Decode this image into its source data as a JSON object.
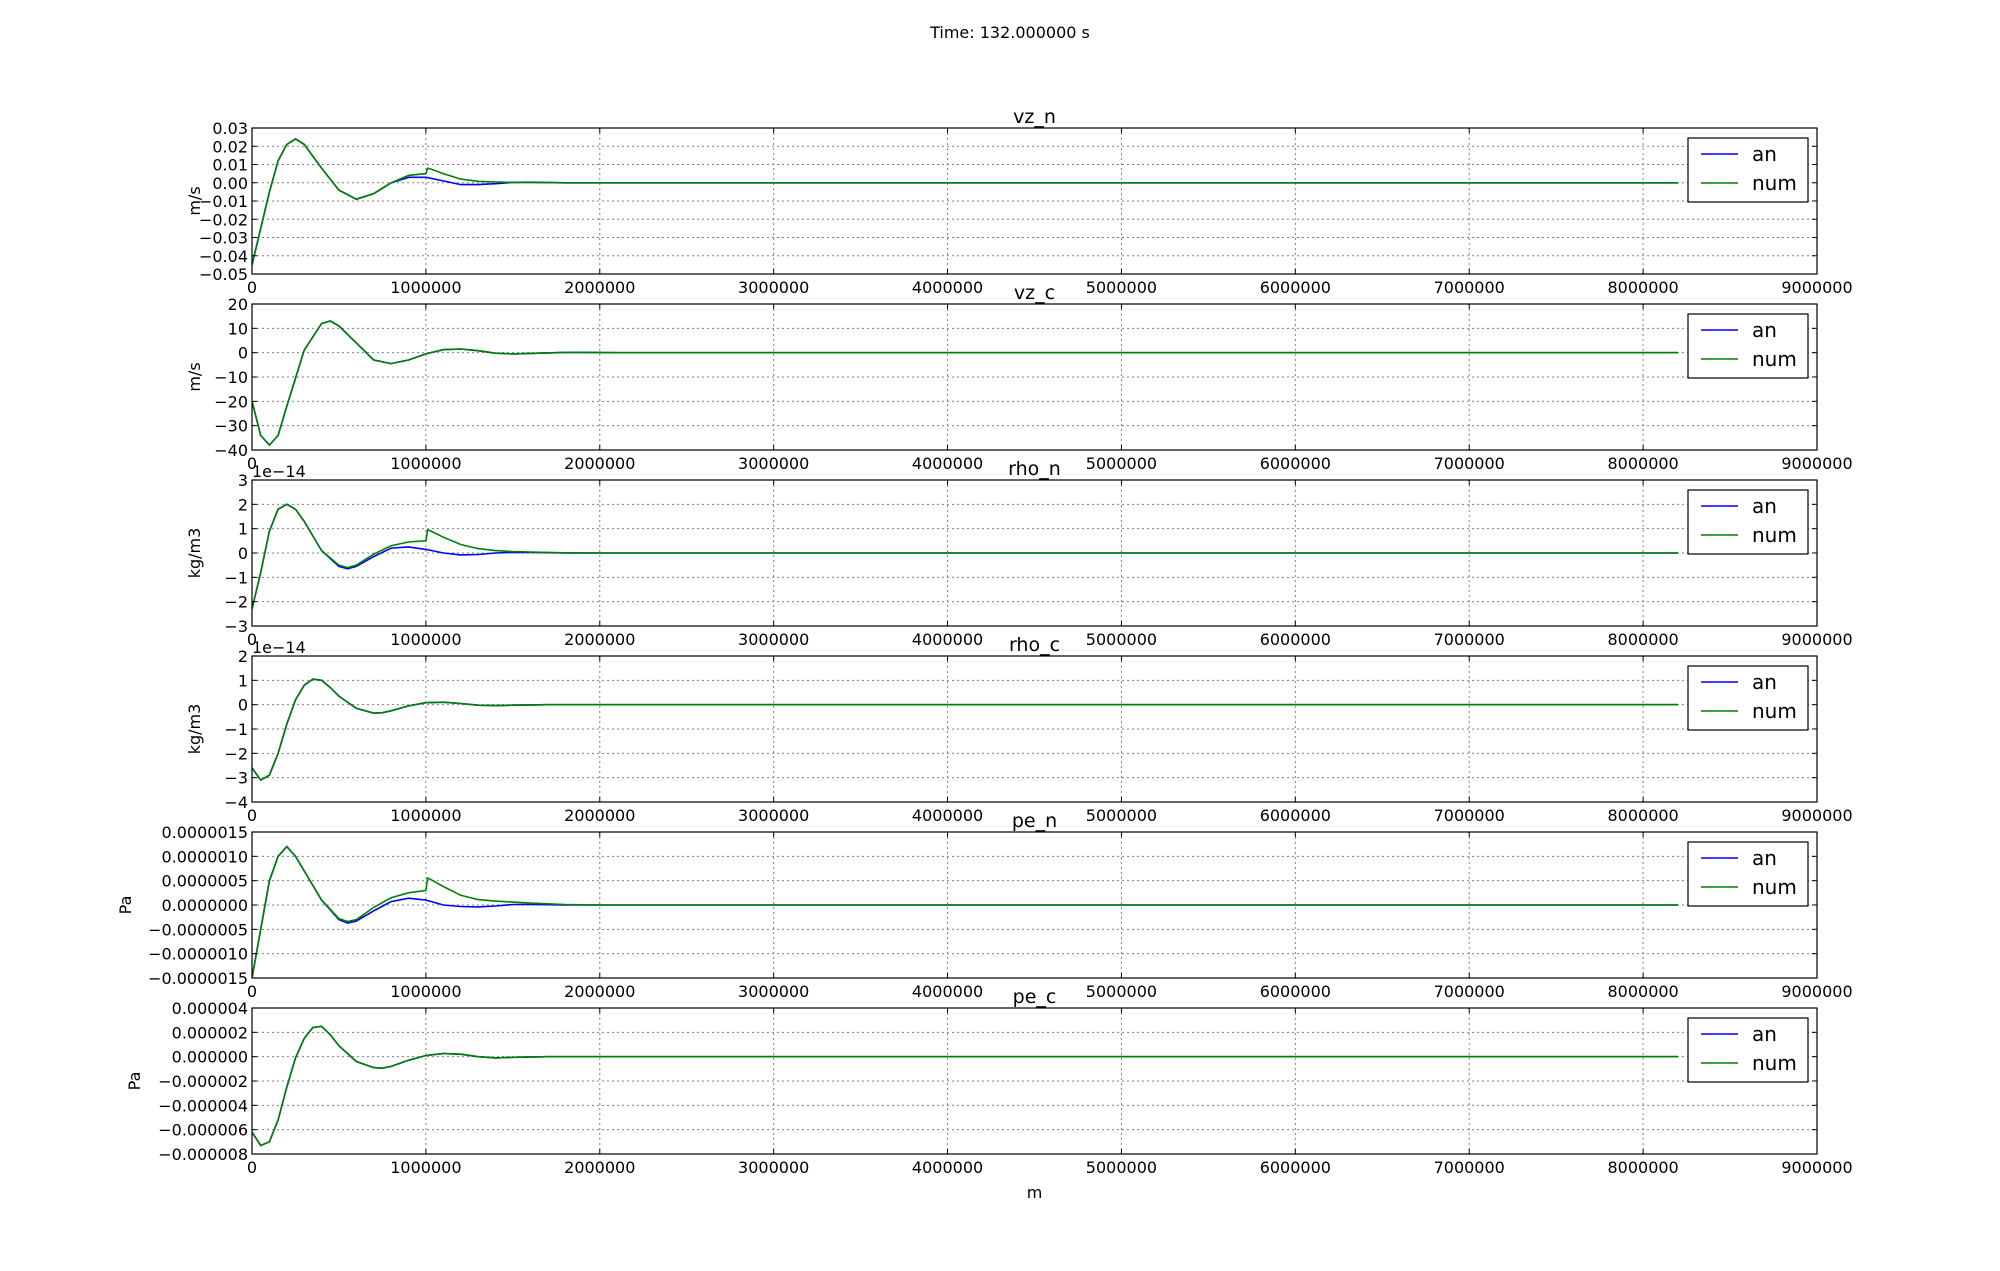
{
  "figure": {
    "suptitle": "Time: 132.000000 s"
  },
  "colors": {
    "an": "#0000ff",
    "num": "#008000",
    "grid": "#808080",
    "axes": "#000000"
  },
  "chart_data": [
    {
      "type": "line",
      "title": "vz_n",
      "xlabel": "",
      "ylabel": "m/s",
      "xlim": [
        0,
        9000000
      ],
      "ylim": [
        -0.05,
        0.03
      ],
      "xticks": [
        0,
        1000000,
        2000000,
        3000000,
        4000000,
        5000000,
        6000000,
        7000000,
        8000000,
        9000000
      ],
      "xticklabels": [
        "0",
        "1000000",
        "2000000",
        "3000000",
        "4000000",
        "5000000",
        "6000000",
        "7000000",
        "8000000",
        "9000000"
      ],
      "yticks": [
        -0.05,
        -0.04,
        -0.03,
        -0.02,
        -0.01,
        0.0,
        0.01,
        0.02,
        0.03
      ],
      "yticklabels": [
        "−0.05",
        "−0.04",
        "−0.03",
        "−0.02",
        "−0.01",
        "0.00",
        "0.01",
        "0.02",
        "0.03"
      ],
      "offset_label": "",
      "grid": true,
      "legend": "top-right",
      "series": [
        {
          "name": "an",
          "color": "#0000ff",
          "x": [
            0,
            50000,
            100000,
            150000,
            200000,
            250000,
            300000,
            400000,
            500000,
            600000,
            700000,
            800000,
            900000,
            1000000,
            1100000,
            1200000,
            1300000,
            1400000,
            1500000,
            1600000,
            1700000,
            1800000,
            2000000,
            8200000
          ],
          "y": [
            -0.045,
            -0.025,
            -0.005,
            0.012,
            0.021,
            0.024,
            0.021,
            0.008,
            -0.004,
            -0.009,
            -0.006,
            0.0,
            0.003,
            0.003,
            0.001,
            -0.001,
            -0.001,
            -0.0005,
            0.0002,
            0.0003,
            0.0001,
            0.0,
            0.0,
            0.0
          ]
        },
        {
          "name": "num",
          "color": "#008000",
          "x": [
            0,
            50000,
            100000,
            150000,
            200000,
            250000,
            300000,
            400000,
            500000,
            600000,
            700000,
            800000,
            900000,
            1000000,
            1010000,
            1030000,
            1100000,
            1200000,
            1300000,
            1400000,
            1500000,
            1600000,
            1700000,
            1800000,
            2000000,
            8200000
          ],
          "y": [
            -0.045,
            -0.025,
            -0.005,
            0.012,
            0.021,
            0.024,
            0.021,
            0.008,
            -0.004,
            -0.009,
            -0.006,
            0.0,
            0.004,
            0.005,
            0.008,
            0.0075,
            0.005,
            0.002,
            0.0008,
            0.0004,
            0.0002,
            0.0002,
            0.0001,
            0.0,
            0.0,
            0.0
          ]
        }
      ]
    },
    {
      "type": "line",
      "title": "vz_c",
      "xlabel": "",
      "ylabel": "m/s",
      "xlim": [
        0,
        9000000
      ],
      "ylim": [
        -40,
        20
      ],
      "xticks": [
        0,
        1000000,
        2000000,
        3000000,
        4000000,
        5000000,
        6000000,
        7000000,
        8000000,
        9000000
      ],
      "xticklabels": [
        "0",
        "1000000",
        "2000000",
        "3000000",
        "4000000",
        "5000000",
        "6000000",
        "7000000",
        "8000000",
        "9000000"
      ],
      "yticks": [
        -40,
        -30,
        -20,
        -10,
        0,
        10,
        20
      ],
      "yticklabels": [
        "−40",
        "−30",
        "−20",
        "−10",
        "0",
        "10",
        "20"
      ],
      "offset_label": "",
      "grid": true,
      "legend": "top-right",
      "series": [
        {
          "name": "an",
          "color": "#0000ff",
          "x": [
            0,
            50000,
            100000,
            150000,
            200000,
            300000,
            400000,
            450000,
            500000,
            600000,
            700000,
            800000,
            900000,
            1000000,
            1100000,
            1200000,
            1300000,
            1400000,
            1500000,
            1600000,
            1800000,
            1900000,
            2100000,
            8200000
          ],
          "y": [
            -20,
            -34,
            -38,
            -34,
            -22,
            1,
            12,
            13,
            11,
            4,
            -3,
            -4.5,
            -3,
            -0.5,
            1.2,
            1.5,
            0.8,
            -0.2,
            -0.5,
            -0.3,
            0.1,
            0.1,
            0.0,
            0.0
          ]
        },
        {
          "name": "num",
          "color": "#008000",
          "x": [
            0,
            50000,
            100000,
            150000,
            200000,
            300000,
            400000,
            450000,
            500000,
            600000,
            700000,
            800000,
            900000,
            1000000,
            1100000,
            1200000,
            1300000,
            1400000,
            1500000,
            1600000,
            1800000,
            1900000,
            2100000,
            8200000
          ],
          "y": [
            -20,
            -34,
            -38,
            -34,
            -22,
            1,
            12,
            13,
            11,
            4,
            -3,
            -4.5,
            -3,
            -0.5,
            1.2,
            1.5,
            0.8,
            -0.2,
            -0.5,
            -0.3,
            0.1,
            0.1,
            0.0,
            0.0
          ]
        }
      ]
    },
    {
      "type": "line",
      "title": "rho_n",
      "xlabel": "",
      "ylabel": "kg/m3",
      "xlim": [
        0,
        9000000
      ],
      "ylim": [
        -3,
        3
      ],
      "xticks": [
        0,
        1000000,
        2000000,
        3000000,
        4000000,
        5000000,
        6000000,
        7000000,
        8000000,
        9000000
      ],
      "xticklabels": [
        "0",
        "1000000",
        "2000000",
        "3000000",
        "4000000",
        "5000000",
        "6000000",
        "7000000",
        "8000000",
        "9000000"
      ],
      "yticks": [
        -3,
        -2,
        -1,
        0,
        1,
        2,
        3
      ],
      "yticklabels": [
        "−3",
        "−2",
        "−1",
        "0",
        "1",
        "2",
        "3"
      ],
      "offset_label": "1e−14",
      "grid": true,
      "legend": "top-right",
      "series": [
        {
          "name": "an",
          "color": "#0000ff",
          "x": [
            0,
            50000,
            100000,
            150000,
            200000,
            250000,
            300000,
            400000,
            500000,
            550000,
            600000,
            700000,
            800000,
            900000,
            1000000,
            1100000,
            1200000,
            1300000,
            1400000,
            1500000,
            1600000,
            1800000,
            2000000,
            8200000
          ],
          "y": [
            -2.3,
            -0.8,
            0.9,
            1.8,
            2.0,
            1.8,
            1.3,
            0.1,
            -0.55,
            -0.65,
            -0.55,
            -0.15,
            0.2,
            0.25,
            0.15,
            0.0,
            -0.08,
            -0.06,
            0.0,
            0.03,
            0.02,
            0.0,
            0.0,
            0.0
          ]
        },
        {
          "name": "num",
          "color": "#008000",
          "x": [
            0,
            50000,
            100000,
            150000,
            200000,
            250000,
            300000,
            400000,
            500000,
            550000,
            600000,
            700000,
            800000,
            900000,
            1000000,
            1010000,
            1030000,
            1100000,
            1200000,
            1300000,
            1400000,
            1500000,
            1600000,
            1800000,
            2000000,
            8200000
          ],
          "y": [
            -2.3,
            -0.8,
            0.9,
            1.8,
            2.0,
            1.8,
            1.3,
            0.1,
            -0.5,
            -0.6,
            -0.5,
            -0.05,
            0.3,
            0.45,
            0.5,
            0.95,
            0.9,
            0.65,
            0.35,
            0.18,
            0.1,
            0.06,
            0.04,
            0.01,
            0.0,
            0.0
          ]
        }
      ]
    },
    {
      "type": "line",
      "title": "rho_c",
      "xlabel": "",
      "ylabel": "kg/m3",
      "xlim": [
        0,
        9000000
      ],
      "ylim": [
        -4,
        2
      ],
      "xticks": [
        0,
        1000000,
        2000000,
        3000000,
        4000000,
        5000000,
        6000000,
        7000000,
        8000000,
        9000000
      ],
      "xticklabels": [
        "0",
        "1000000",
        "2000000",
        "3000000",
        "4000000",
        "5000000",
        "6000000",
        "7000000",
        "8000000",
        "9000000"
      ],
      "yticks": [
        -4,
        -3,
        -2,
        -1,
        0,
        1,
        2
      ],
      "yticklabels": [
        "−4",
        "−3",
        "−2",
        "−1",
        "0",
        "1",
        "2"
      ],
      "offset_label": "1e−14",
      "grid": true,
      "legend": "top-right",
      "series": [
        {
          "name": "an",
          "color": "#0000ff",
          "x": [
            0,
            50000,
            100000,
            150000,
            200000,
            250000,
            300000,
            350000,
            400000,
            450000,
            500000,
            600000,
            700000,
            750000,
            800000,
            900000,
            1000000,
            1100000,
            1200000,
            1300000,
            1400000,
            1500000,
            1700000,
            8200000
          ],
          "y": [
            -2.6,
            -3.1,
            -2.9,
            -2.0,
            -0.8,
            0.2,
            0.8,
            1.05,
            1.0,
            0.7,
            0.35,
            -0.15,
            -0.35,
            -0.33,
            -0.25,
            -0.05,
            0.08,
            0.1,
            0.05,
            -0.02,
            -0.04,
            -0.02,
            0.0,
            0.0
          ]
        },
        {
          "name": "num",
          "color": "#008000",
          "x": [
            0,
            50000,
            100000,
            150000,
            200000,
            250000,
            300000,
            350000,
            400000,
            450000,
            500000,
            600000,
            700000,
            750000,
            800000,
            900000,
            1000000,
            1100000,
            1200000,
            1300000,
            1400000,
            1500000,
            1700000,
            8200000
          ],
          "y": [
            -2.6,
            -3.1,
            -2.9,
            -2.0,
            -0.8,
            0.2,
            0.8,
            1.05,
            1.0,
            0.7,
            0.35,
            -0.15,
            -0.35,
            -0.33,
            -0.25,
            -0.05,
            0.08,
            0.1,
            0.05,
            -0.02,
            -0.04,
            -0.02,
            0.0,
            0.0
          ]
        }
      ]
    },
    {
      "type": "line",
      "title": "pe_n",
      "xlabel": "",
      "ylabel": "Pa",
      "xlim": [
        0,
        9000000
      ],
      "ylim": [
        -1.5e-06,
        1.5e-06
      ],
      "xticks": [
        0,
        1000000,
        2000000,
        3000000,
        4000000,
        5000000,
        6000000,
        7000000,
        8000000,
        9000000
      ],
      "xticklabels": [
        "0",
        "1000000",
        "2000000",
        "3000000",
        "4000000",
        "5000000",
        "6000000",
        "7000000",
        "8000000",
        "9000000"
      ],
      "yticks": [
        -1.5e-06,
        -1e-06,
        -5e-07,
        0.0,
        5e-07,
        1e-06,
        1.5e-06
      ],
      "yticklabels": [
        "−0.0000015",
        "−0.0000010",
        "−0.0000005",
        "0.0000000",
        "0.0000005",
        "0.0000010",
        "0.0000015"
      ],
      "offset_label": "",
      "grid": true,
      "legend": "top-right",
      "series": [
        {
          "name": "an",
          "color": "#0000ff",
          "x": [
            0,
            50000,
            100000,
            150000,
            200000,
            250000,
            300000,
            400000,
            500000,
            550000,
            600000,
            700000,
            800000,
            900000,
            1000000,
            1100000,
            1200000,
            1300000,
            1400000,
            1500000,
            1600000,
            1800000,
            2000000,
            8200000
          ],
          "y": [
            -1.5e-06,
            -5e-07,
            5e-07,
            1e-06,
            1.2e-06,
            1e-06,
            7e-07,
            1e-07,
            -3e-07,
            -3.7e-07,
            -3.3e-07,
            -1.2e-07,
            7e-08,
            1.4e-07,
            1e-07,
            0.0,
            -3e-08,
            -4e-08,
            -2e-08,
            1e-08,
            1e-08,
            0.0,
            0.0,
            0.0
          ]
        },
        {
          "name": "num",
          "color": "#008000",
          "x": [
            0,
            50000,
            100000,
            150000,
            200000,
            250000,
            300000,
            400000,
            500000,
            550000,
            600000,
            700000,
            800000,
            900000,
            1000000,
            1010000,
            1030000,
            1100000,
            1200000,
            1300000,
            1400000,
            1500000,
            1600000,
            1800000,
            2000000,
            8200000
          ],
          "y": [
            -1.5e-06,
            -5e-07,
            5e-07,
            1e-06,
            1.2e-06,
            1e-06,
            7e-07,
            1e-07,
            -2.8e-07,
            -3.4e-07,
            -3e-07,
            -5e-08,
            1.5e-07,
            2.5e-07,
            3e-07,
            5.5e-07,
            5.2e-07,
            3.8e-07,
            2e-07,
            1.1e-07,
            8e-08,
            6e-08,
            4e-08,
            1e-08,
            0.0,
            0.0
          ]
        }
      ]
    },
    {
      "type": "line",
      "title": "pe_c",
      "xlabel": "m",
      "ylabel": "Pa",
      "xlim": [
        0,
        9000000
      ],
      "ylim": [
        -8e-06,
        4e-06
      ],
      "xticks": [
        0,
        1000000,
        2000000,
        3000000,
        4000000,
        5000000,
        6000000,
        7000000,
        8000000,
        9000000
      ],
      "xticklabels": [
        "0",
        "1000000",
        "2000000",
        "3000000",
        "4000000",
        "5000000",
        "6000000",
        "7000000",
        "8000000",
        "9000000"
      ],
      "yticks": [
        -8e-06,
        -6e-06,
        -4e-06,
        -2e-06,
        0.0,
        2e-06,
        4e-06
      ],
      "yticklabels": [
        "−0.000008",
        "−0.000006",
        "−0.000004",
        "−0.000002",
        "0.000000",
        "0.000002",
        "0.000004"
      ],
      "offset_label": "",
      "grid": true,
      "legend": "top-right",
      "series": [
        {
          "name": "an",
          "color": "#0000ff",
          "x": [
            0,
            50000,
            100000,
            150000,
            200000,
            250000,
            300000,
            350000,
            400000,
            450000,
            500000,
            600000,
            700000,
            750000,
            800000,
            900000,
            1000000,
            1100000,
            1200000,
            1300000,
            1400000,
            1500000,
            1700000,
            8200000
          ],
          "y": [
            -6.2e-06,
            -7.3e-06,
            -7e-06,
            -5.2e-06,
            -2.5e-06,
            -1e-07,
            1.5e-06,
            2.4e-06,
            2.5e-06,
            1.8e-06,
            9e-07,
            -4e-07,
            -9e-07,
            -9.5e-07,
            -8e-07,
            -3e-07,
            1e-07,
            2.5e-07,
            2e-07,
            0.0,
            -1e-07,
            -5e-08,
            0.0,
            0.0
          ]
        },
        {
          "name": "num",
          "color": "#008000",
          "x": [
            0,
            50000,
            100000,
            150000,
            200000,
            250000,
            300000,
            350000,
            400000,
            450000,
            500000,
            600000,
            700000,
            750000,
            800000,
            900000,
            1000000,
            1100000,
            1200000,
            1300000,
            1400000,
            1500000,
            1700000,
            8200000
          ],
          "y": [
            -6.2e-06,
            -7.3e-06,
            -7e-06,
            -5.2e-06,
            -2.5e-06,
            -1e-07,
            1.5e-06,
            2.4e-06,
            2.5e-06,
            1.8e-06,
            9e-07,
            -4e-07,
            -9e-07,
            -9.5e-07,
            -8e-07,
            -3e-07,
            1e-07,
            2.5e-07,
            2e-07,
            0.0,
            -1e-07,
            -5e-08,
            0.0,
            0.0
          ]
        }
      ]
    }
  ]
}
